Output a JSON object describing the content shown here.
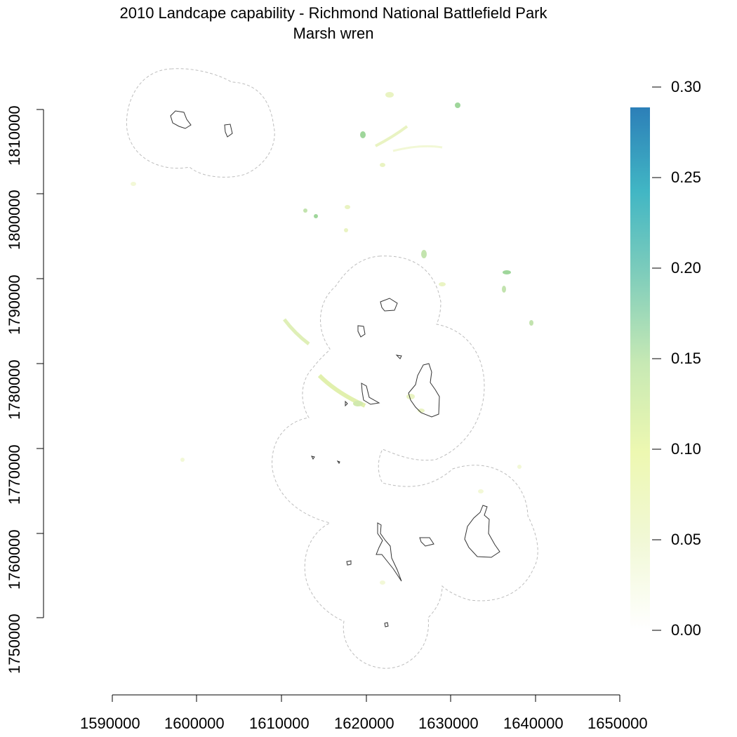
{
  "title": {
    "line1": "2010 Landcape capability - Richmond National Battlefield Park",
    "line2": "Marsh wren"
  },
  "axes": {
    "x": {
      "ticks": [
        "1590000",
        "1600000",
        "1610000",
        "1620000",
        "1630000",
        "1640000",
        "1650000"
      ],
      "values": [
        1590000,
        1600000,
        1610000,
        1620000,
        1630000,
        1640000,
        1650000
      ]
    },
    "y": {
      "ticks": [
        "1750000",
        "1760000",
        "1770000",
        "1780000",
        "1790000",
        "1800000",
        "1810000"
      ],
      "values": [
        1750000,
        1760000,
        1770000,
        1780000,
        1790000,
        1800000,
        1810000
      ]
    }
  },
  "legend": {
    "ticks": [
      "0.00",
      "0.05",
      "0.10",
      "0.15",
      "0.20",
      "0.25",
      "0.30"
    ],
    "values": [
      0.0,
      0.05,
      0.1,
      0.15,
      0.2,
      0.25,
      0.3
    ],
    "colors": [
      "#ffffff",
      "#f1f8d6",
      "#edf8b1",
      "#c7e9b4",
      "#7fcdbb",
      "#41b6c4",
      "#2c7fb8"
    ]
  },
  "colors": {
    "buffer_outline": "#bdbdbd",
    "park_outline": "#333333",
    "capability_low": "#e6f2b8",
    "capability_mid": "#b8dfa0",
    "capability_high": "#8fd08a"
  }
}
